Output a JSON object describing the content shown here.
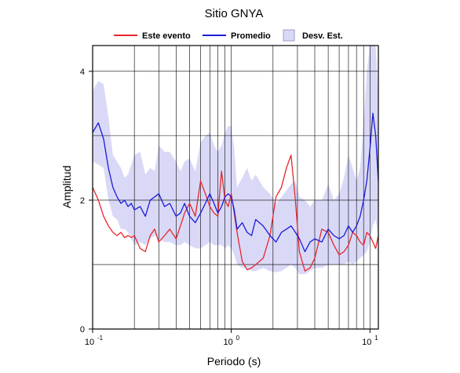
{
  "chart_data": {
    "type": "line",
    "title": "Sitio GNYA",
    "xlabel": "Periodo (s)",
    "ylabel": "Amplitud",
    "xscale": "log",
    "xlim": [
      0.1,
      11.5
    ],
    "ylim": [
      0,
      4.4
    ],
    "xticks": [
      {
        "value": 0.1,
        "label": "10",
        "exp": "-1"
      },
      {
        "value": 1,
        "label": "10",
        "exp": "0"
      },
      {
        "value": 10,
        "label": "10",
        "exp": "1"
      }
    ],
    "yticks": [
      0,
      2,
      4
    ],
    "grid": true,
    "legend": {
      "placement": "top",
      "entries": [
        "Este evento",
        "Promedio",
        "Desv. Est."
      ]
    },
    "colors": {
      "este_evento": "#e8262b",
      "promedio": "#1a1adb",
      "desv_est": "#d9d9f7"
    },
    "x": [
      0.1,
      0.11,
      0.12,
      0.13,
      0.14,
      0.15,
      0.16,
      0.17,
      0.18,
      0.19,
      0.2,
      0.22,
      0.24,
      0.26,
      0.28,
      0.3,
      0.33,
      0.36,
      0.4,
      0.43,
      0.46,
      0.5,
      0.55,
      0.6,
      0.65,
      0.7,
      0.75,
      0.8,
      0.85,
      0.9,
      0.95,
      1.0,
      1.05,
      1.1,
      1.2,
      1.3,
      1.4,
      1.5,
      1.7,
      1.9,
      2.1,
      2.3,
      2.5,
      2.7,
      2.9,
      3.1,
      3.4,
      3.7,
      4.0,
      4.5,
      5.0,
      5.5,
      6.0,
      6.5,
      7.0,
      7.5,
      8.0,
      8.5,
      9.0,
      9.5,
      10.0,
      10.5,
      11.0,
      11.5
    ],
    "series": [
      {
        "name": "Este evento",
        "values": [
          2.2,
          2.0,
          1.75,
          1.6,
          1.5,
          1.45,
          1.5,
          1.42,
          1.45,
          1.42,
          1.45,
          1.25,
          1.2,
          1.45,
          1.55,
          1.35,
          1.45,
          1.55,
          1.4,
          1.6,
          1.8,
          1.95,
          1.75,
          2.3,
          2.1,
          1.9,
          1.8,
          1.75,
          2.45,
          2.0,
          1.9,
          2.1,
          1.8,
          1.5,
          1.05,
          0.92,
          0.95,
          1.0,
          1.1,
          1.45,
          2.05,
          2.2,
          2.5,
          2.7,
          2.0,
          1.2,
          0.9,
          0.95,
          1.1,
          1.55,
          1.5,
          1.3,
          1.15,
          1.2,
          1.3,
          1.5,
          1.45,
          1.35,
          1.3,
          1.5,
          1.45,
          1.35,
          1.25,
          1.45
        ]
      },
      {
        "name": "Promedio",
        "values": [
          3.05,
          3.2,
          2.95,
          2.5,
          2.2,
          2.05,
          1.95,
          2.0,
          1.9,
          1.95,
          1.85,
          1.9,
          1.75,
          2.0,
          2.05,
          2.1,
          1.9,
          1.95,
          1.75,
          1.8,
          1.95,
          1.75,
          1.65,
          1.8,
          1.95,
          2.1,
          1.95,
          1.8,
          1.9,
          2.05,
          2.1,
          2.05,
          1.85,
          1.55,
          1.65,
          1.5,
          1.45,
          1.7,
          1.6,
          1.45,
          1.35,
          1.5,
          1.55,
          1.6,
          1.5,
          1.4,
          1.2,
          1.35,
          1.4,
          1.35,
          1.55,
          1.45,
          1.4,
          1.45,
          1.6,
          1.5,
          1.6,
          1.75,
          2.0,
          2.3,
          2.8,
          3.35,
          3.0,
          2.3
        ]
      },
      {
        "name": "Desv. Est.",
        "lower": [
          2.6,
          2.55,
          2.5,
          2.0,
          1.75,
          1.7,
          1.55,
          1.55,
          1.5,
          1.4,
          1.3,
          1.35,
          1.3,
          1.4,
          1.45,
          1.4,
          1.35,
          1.35,
          1.3,
          1.3,
          1.35,
          1.3,
          1.25,
          1.25,
          1.3,
          1.35,
          1.3,
          1.3,
          1.3,
          1.25,
          1.3,
          1.25,
          1.15,
          1.0,
          0.95,
          0.95,
          0.9,
          0.9,
          0.95,
          0.9,
          0.88,
          0.9,
          0.95,
          1.0,
          0.95,
          0.85,
          0.85,
          0.9,
          0.95,
          0.95,
          1.0,
          1.0,
          1.0,
          1.0,
          1.05,
          1.0,
          1.05,
          1.1,
          1.15,
          1.2,
          1.35,
          1.6,
          1.7,
          1.4
        ],
        "upper": [
          3.7,
          3.85,
          3.8,
          3.3,
          2.7,
          2.6,
          2.5,
          2.35,
          2.4,
          2.55,
          2.7,
          2.75,
          2.4,
          2.5,
          2.45,
          2.85,
          2.75,
          2.75,
          2.6,
          2.45,
          2.6,
          2.65,
          2.45,
          2.9,
          3.0,
          3.05,
          2.85,
          2.75,
          2.85,
          3.05,
          3.15,
          3.15,
          2.8,
          2.2,
          2.35,
          2.5,
          2.3,
          2.4,
          2.2,
          2.1,
          1.95,
          2.05,
          2.15,
          2.25,
          2.3,
          2.05,
          2.0,
          1.9,
          2.0,
          2.0,
          2.25,
          2.0,
          2.1,
          2.35,
          2.7,
          2.5,
          2.3,
          2.5,
          3.2,
          4.0,
          4.4,
          4.4,
          4.4,
          3.6
        ]
      }
    ]
  }
}
